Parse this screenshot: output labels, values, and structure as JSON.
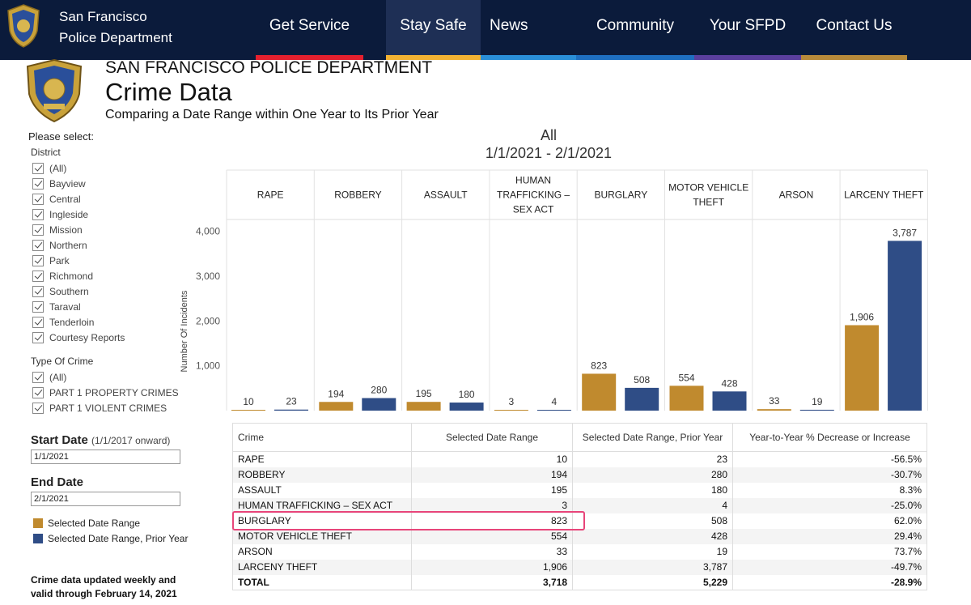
{
  "nav": {
    "brand_line1": "San Francisco",
    "brand_line2": "Police Department",
    "items": [
      {
        "label": "Get Service",
        "bar": "#e5202e"
      },
      {
        "label": "Stay Safe",
        "bar": "#f2b233",
        "active": true
      },
      {
        "label": "News",
        "bar": "#2a8fd8"
      },
      {
        "label": "Community",
        "bar": "#1f6fc0"
      },
      {
        "label": "Your SFPD",
        "bar": "#5b3f9e"
      },
      {
        "label": "Contact Us",
        "bar": "#b88a3a"
      }
    ]
  },
  "header": {
    "dept": "SAN FRANCISCO POLICE DEPARTMENT",
    "title": "Crime Data",
    "subtitle": "Comparing a Date Range within One Year to Its Prior Year"
  },
  "filters": {
    "please_select": "Please select:",
    "district_label": "District",
    "districts": [
      "(All)",
      "Bayview",
      "Central",
      "Ingleside",
      "Mission",
      "Northern",
      "Park",
      "Richmond",
      "Southern",
      "Taraval",
      "Tenderloin",
      "Courtesy Reports"
    ],
    "type_label": "Type Of Crime",
    "types": [
      "(All)",
      "PART 1 PROPERTY CRIMES",
      "PART 1 VIOLENT CRIMES"
    ],
    "start_label": "Start Date",
    "start_note": "(1/1/2017 onward)",
    "start_value": "1/1/2021",
    "end_label": "End Date",
    "end_value": "2/1/2021",
    "legend_selected": "Selected Date Range",
    "legend_prior": "Selected Date Range, Prior Year",
    "updated_line1": "Crime data updated weekly and",
    "updated_line2": "valid through February 14, 2021"
  },
  "colors": {
    "selected": "#c08a2e",
    "prior": "#2f4d86"
  },
  "chart_data": {
    "type": "bar",
    "title": "All",
    "subtitle": "1/1/2021 - 2/1/2021",
    "ylabel": "Number Of Incidents",
    "ylim": [
      0,
      4300
    ],
    "yticks": [
      1000,
      2000,
      3000,
      4000
    ],
    "ytick_labels": [
      "1,000",
      "2,000",
      "3,000",
      "4,000"
    ],
    "categories": [
      "RAPE",
      "ROBBERY",
      "ASSAULT",
      "HUMAN TRAFFICKING – SEX ACT",
      "BURGLARY",
      "MOTOR VEHICLE THEFT",
      "ARSON",
      "LARCENY THEFT"
    ],
    "category_lines": [
      [
        "RAPE"
      ],
      [
        "ROBBERY"
      ],
      [
        "ASSAULT"
      ],
      [
        "HUMAN",
        "TRAFFICKING –",
        "SEX ACT"
      ],
      [
        "BURGLARY"
      ],
      [
        "MOTOR VEHICLE",
        "THEFT"
      ],
      [
        "ARSON"
      ],
      [
        "LARCENY THEFT"
      ]
    ],
    "series": [
      {
        "name": "Selected Date Range",
        "values": [
          10,
          194,
          195,
          3,
          823,
          554,
          33,
          1906
        ],
        "labels": [
          "10",
          "194",
          "195",
          "3",
          "823",
          "554",
          "33",
          "1,906"
        ]
      },
      {
        "name": "Selected Date Range, Prior Year",
        "values": [
          23,
          280,
          180,
          4,
          508,
          428,
          19,
          3787
        ],
        "labels": [
          "23",
          "280",
          "180",
          "4",
          "508",
          "428",
          "19",
          "3,787"
        ]
      }
    ]
  },
  "table": {
    "headers": [
      "Crime",
      "Selected Date Range",
      "Selected Date Range, Prior Year",
      "Year-to-Year % Decrease or Increase"
    ],
    "rows": [
      [
        "RAPE",
        "10",
        "23",
        "-56.5%"
      ],
      [
        "ROBBERY",
        "194",
        "280",
        "-30.7%"
      ],
      [
        "ASSAULT",
        "195",
        "180",
        "8.3%"
      ],
      [
        "HUMAN TRAFFICKING – SEX ACT",
        "3",
        "4",
        "-25.0%"
      ],
      [
        "BURGLARY",
        "823",
        "508",
        "62.0%"
      ],
      [
        "MOTOR VEHICLE THEFT",
        "554",
        "428",
        "29.4%"
      ],
      [
        "ARSON",
        "33",
        "19",
        "73.7%"
      ],
      [
        "LARCENY THEFT",
        "1,906",
        "3,787",
        "-49.7%"
      ]
    ],
    "total": [
      "TOTAL",
      "3,718",
      "5,229",
      "-28.9%"
    ]
  }
}
